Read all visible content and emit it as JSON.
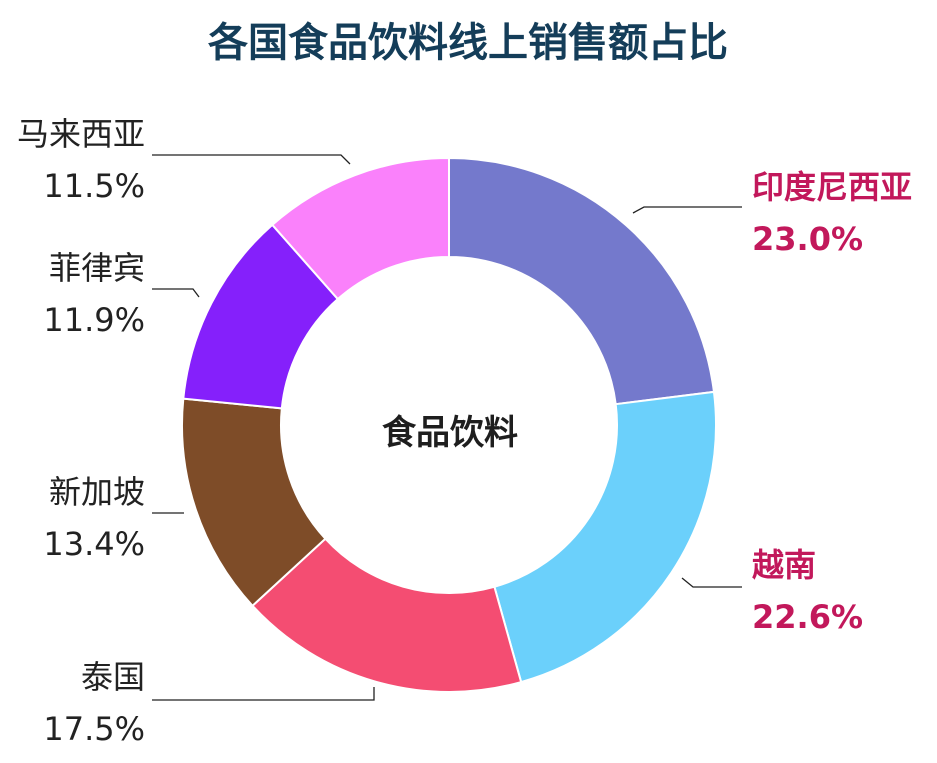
{
  "chart_data": {
    "type": "pie",
    "title": "各国食品饮料线上销售额占比",
    "center_label": "食品饮料",
    "highlight_color": "#c2185b",
    "slices": [
      {
        "label": "印度尼西亚",
        "value": 23.0,
        "display": "23.0%",
        "color": "#7479cc",
        "highlight": true
      },
      {
        "label": "越南",
        "value": 22.6,
        "display": "22.6%",
        "color": "#6bd0fb",
        "highlight": true
      },
      {
        "label": "泰国",
        "value": 17.5,
        "display": "17.5%",
        "color": "#f44d72",
        "highlight": false
      },
      {
        "label": "新加坡",
        "value": 13.4,
        "display": "13.4%",
        "color": "#7e4c28",
        "highlight": false
      },
      {
        "label": "菲律宾",
        "value": 11.9,
        "display": "11.9%",
        "color": "#8520fb",
        "highlight": false
      },
      {
        "label": "马来西亚",
        "value": 11.5,
        "display": "11.5%",
        "color": "#fa81fb",
        "highlight": false
      }
    ]
  }
}
